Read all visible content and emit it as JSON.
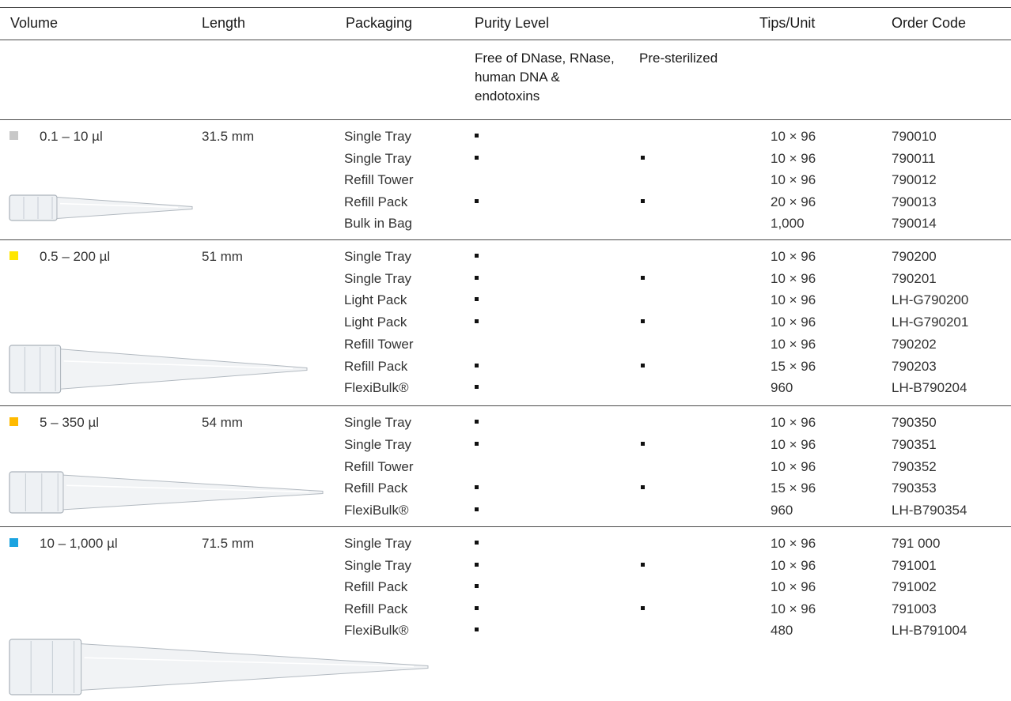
{
  "header": {
    "volume": "Volume",
    "length": "Length",
    "packaging": "Packaging",
    "purity": "Purity Level",
    "tips_unit": "Tips/Unit",
    "order_code": "Order Code",
    "free_of": "Free of DNase, RNase, human DNA & endotoxins",
    "pre_sterilized": "Pre-sterilized"
  },
  "groups": [
    {
      "volume": "0.1 – 10 µl",
      "length": "31.5 mm",
      "color": "#c8c8c8",
      "icon": "pipette-tip-10ul-icon",
      "rows": [
        {
          "packaging": "Single Tray",
          "free": true,
          "sterile": false,
          "tips": "10 × 96",
          "code": "790010"
        },
        {
          "packaging": "Single Tray",
          "free": true,
          "sterile": true,
          "tips": "10 × 96",
          "code": "790011"
        },
        {
          "packaging": "Refill Tower",
          "free": false,
          "sterile": false,
          "tips": "10 × 96",
          "code": "790012"
        },
        {
          "packaging": "Refill Pack",
          "free": true,
          "sterile": true,
          "tips": "20 × 96",
          "code": "790013"
        },
        {
          "packaging": "Bulk in Bag",
          "free": false,
          "sterile": false,
          "tips": "1,000",
          "code": "790014"
        }
      ]
    },
    {
      "volume": "0.5 – 200 µl",
      "length": "51 mm",
      "color": "#ffe600",
      "icon": "pipette-tip-200ul-icon",
      "rows": [
        {
          "packaging": "Single Tray",
          "free": true,
          "sterile": false,
          "tips": "10 × 96",
          "code": "790200"
        },
        {
          "packaging": "Single Tray",
          "free": true,
          "sterile": true,
          "tips": "10 × 96",
          "code": "790201"
        },
        {
          "packaging": "Light Pack",
          "free": true,
          "sterile": false,
          "tips": "10 × 96",
          "code": "LH-G790200"
        },
        {
          "packaging": "Light Pack",
          "free": true,
          "sterile": true,
          "tips": "10 × 96",
          "code": "LH-G790201"
        },
        {
          "packaging": "Refill Tower",
          "free": false,
          "sterile": false,
          "tips": "10 × 96",
          "code": "790202"
        },
        {
          "packaging": "Refill Pack",
          "free": true,
          "sterile": true,
          "tips": "15 × 96",
          "code": "790203"
        },
        {
          "packaging": "FlexiBulk®",
          "free": true,
          "sterile": false,
          "tips": "960",
          "code": "LH-B790204"
        }
      ]
    },
    {
      "volume": "5 – 350 µl",
      "length": "54 mm",
      "color": "#ffba00",
      "icon": "pipette-tip-350ul-icon",
      "rows": [
        {
          "packaging": "Single Tray",
          "free": true,
          "sterile": false,
          "tips": "10 × 96",
          "code": "790350"
        },
        {
          "packaging": "Single Tray",
          "free": true,
          "sterile": true,
          "tips": "10 × 96",
          "code": "790351"
        },
        {
          "packaging": "Refill Tower",
          "free": false,
          "sterile": false,
          "tips": "10 × 96",
          "code": "790352"
        },
        {
          "packaging": "Refill Pack",
          "free": true,
          "sterile": true,
          "tips": "15 × 96",
          "code": "790353"
        },
        {
          "packaging": "FlexiBulk®",
          "free": true,
          "sterile": false,
          "tips": "960",
          "code": "LH-B790354"
        }
      ]
    },
    {
      "volume": "10 – 1,000 µl",
      "length": "71.5 mm",
      "color": "#1ba3e0",
      "icon": "pipette-tip-1000ul-icon",
      "rows": [
        {
          "packaging": "Single Tray",
          "free": true,
          "sterile": false,
          "tips": "10 × 96",
          "code": "791 000"
        },
        {
          "packaging": "Single Tray",
          "free": true,
          "sterile": true,
          "tips": "10 × 96",
          "code": "791001"
        },
        {
          "packaging": "Refill Pack",
          "free": true,
          "sterile": false,
          "tips": "10 × 96",
          "code": "791002"
        },
        {
          "packaging": "Refill Pack",
          "free": true,
          "sterile": true,
          "tips": "10 × 96",
          "code": "791003"
        },
        {
          "packaging": "FlexiBulk®",
          "free": true,
          "sterile": false,
          "tips": "480",
          "code": "LH-B791004"
        }
      ]
    }
  ]
}
